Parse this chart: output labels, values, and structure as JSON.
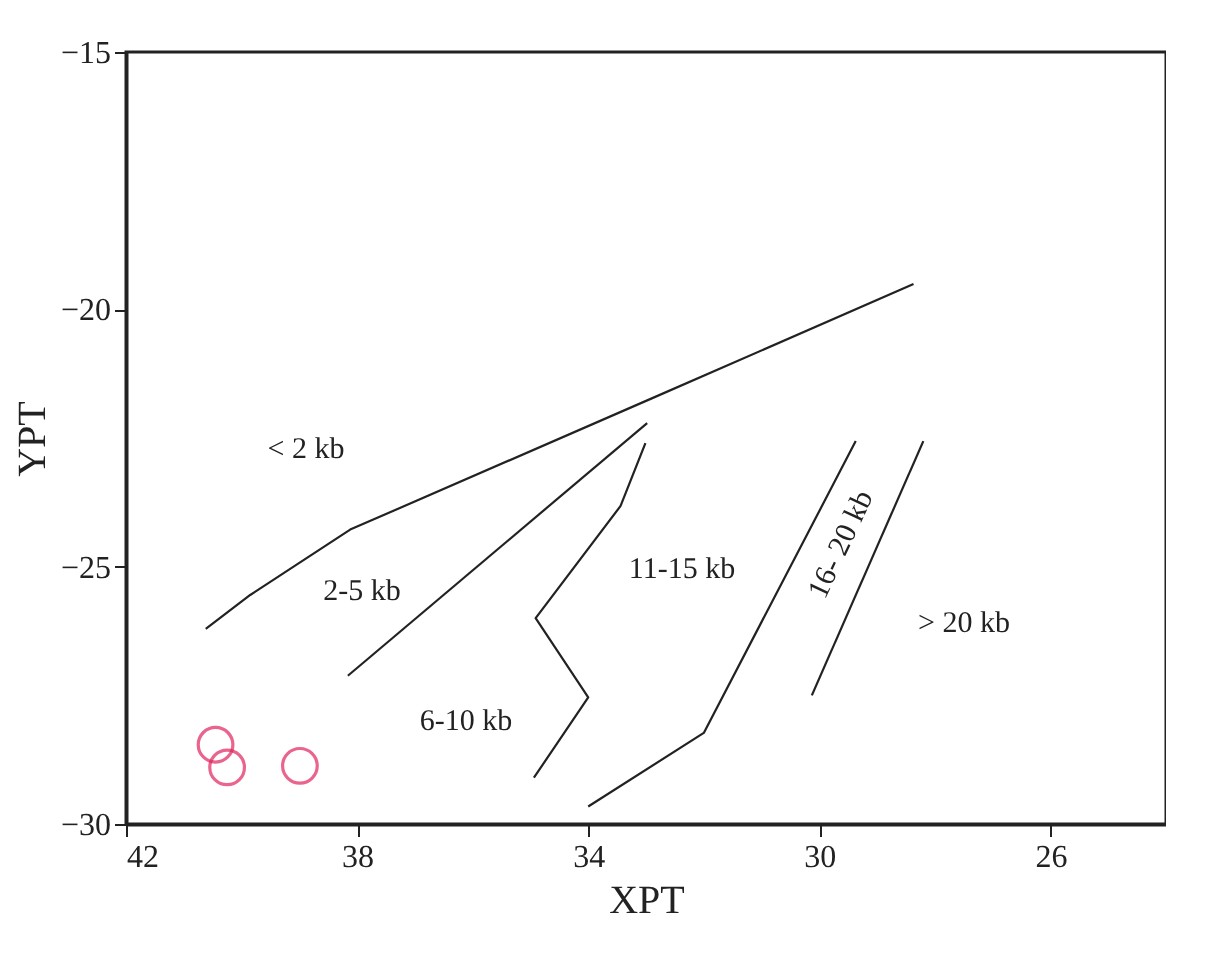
{
  "chart_data": {
    "type": "scatter",
    "xlabel": "XPT",
    "ylabel": "YPT",
    "xlim": [
      42,
      24
    ],
    "xticks": [
      42,
      38,
      34,
      30,
      26
    ],
    "ylim": [
      -30,
      -15
    ],
    "yticks": [
      -30,
      -25,
      -20,
      -15
    ],
    "grid": false,
    "series": [
      {
        "color": "#e0245e",
        "marker": "circle",
        "x": [
          40.45,
          40.25,
          38.99
        ],
        "values": [
          -28.46,
          -28.9,
          -28.87
        ]
      },
      {
        "type": "line",
        "marker": "none",
        "line_style": "solid",
        "color": "#222222",
        "x": [
          40.62,
          39.85,
          38.12,
          32.9,
          28.37
        ],
        "values": [
          -26.21,
          -25.55,
          -24.28,
          -21.73,
          -19.51
        ]
      },
      {
        "type": "line",
        "marker": "none",
        "line_style": "solid",
        "color": "#222222",
        "x": [
          38.16,
          32.98
        ],
        "values": [
          -27.12,
          -22.21
        ]
      },
      {
        "type": "line",
        "marker": "none",
        "line_style": "solid",
        "color": "#222222",
        "x": [
          34.94,
          34.0,
          34.91,
          33.44,
          33.01
        ],
        "values": [
          -29.1,
          -27.54,
          -26.0,
          -23.82,
          -22.6
        ]
      },
      {
        "type": "line",
        "marker": "none",
        "line_style": "solid",
        "color": "#222222",
        "x": [
          34.0,
          32.0,
          29.37
        ],
        "values": [
          -29.66,
          -28.23,
          -22.56
        ]
      },
      {
        "type": "line",
        "marker": "none",
        "line_style": "solid",
        "color": "#222222",
        "x": [
          30.13,
          28.2
        ],
        "values": [
          -27.5,
          -22.56
        ]
      }
    ],
    "annotations": [
      "< 2 kb",
      "2-5 kb",
      "6-10 kb",
      "11-15 kb",
      "16- 20 kb",
      "> 20 kb"
    ]
  }
}
